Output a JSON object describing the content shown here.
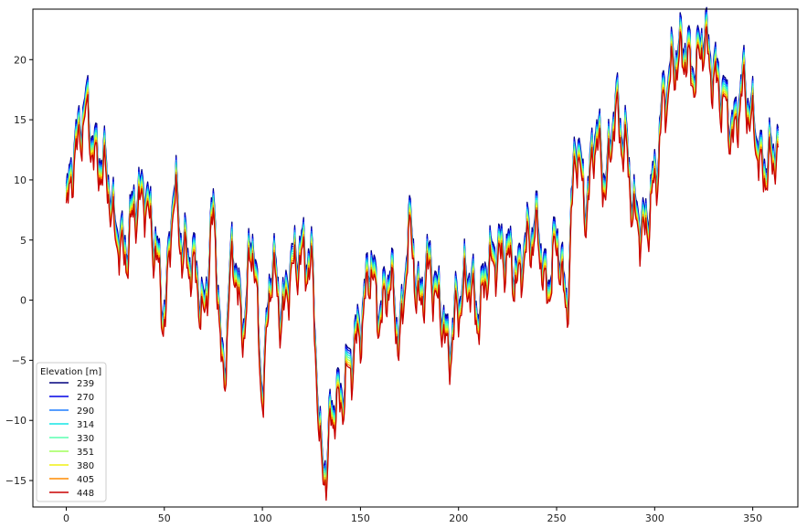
{
  "chart_data": {
    "type": "line",
    "title": "",
    "xlabel": "",
    "ylabel": "",
    "xlim": [
      -17,
      373
    ],
    "ylim": [
      -17.2,
      24.2
    ],
    "x_ticks": [
      0,
      50,
      100,
      150,
      200,
      250,
      300,
      350
    ],
    "y_ticks": [
      -15,
      -10,
      -5,
      0,
      5,
      10,
      15,
      20
    ],
    "grid": false,
    "legend": {
      "title": "Elevation [m]",
      "placement": "lower-left"
    },
    "x": [
      0,
      5,
      10,
      15,
      20,
      25,
      30,
      35,
      40,
      45,
      50,
      55,
      60,
      65,
      70,
      75,
      80,
      85,
      90,
      95,
      100,
      105,
      110,
      115,
      120,
      125,
      130,
      133,
      135,
      140,
      145,
      150,
      155,
      160,
      165,
      170,
      175,
      180,
      185,
      190,
      195,
      200,
      205,
      210,
      215,
      220,
      225,
      230,
      235,
      240,
      245,
      250,
      255,
      260,
      265,
      270,
      275,
      280,
      285,
      290,
      295,
      300,
      305,
      310,
      315,
      320,
      325,
      330,
      335,
      340,
      345,
      350,
      355,
      360,
      363
    ],
    "series": [
      {
        "name": "239",
        "color": "#00007f",
        "offset": 0.8
      },
      {
        "name": "270",
        "color": "#0000e6",
        "offset": 0.6
      },
      {
        "name": "290",
        "color": "#1e7dff",
        "offset": 0.4
      },
      {
        "name": "314",
        "color": "#14e6e6",
        "offset": 0.2
      },
      {
        "name": "330",
        "color": "#5affb0",
        "offset": 0.0
      },
      {
        "name": "351",
        "color": "#a0ff5a",
        "offset": -0.2
      },
      {
        "name": "380",
        "color": "#f0f014",
        "offset": -0.4
      },
      {
        "name": "405",
        "color": "#ff8c00",
        "offset": -0.6
      },
      {
        "name": "448",
        "color": "#c80000",
        "offset": -0.8
      }
    ],
    "base_values": [
      8,
      13,
      16,
      12,
      11,
      6,
      4,
      8,
      9,
      5,
      -1,
      9,
      4,
      3,
      -1,
      7,
      -6,
      4,
      -2,
      5,
      -7,
      3,
      -1,
      3,
      4,
      3,
      -13,
      -14,
      -9,
      -8,
      -5,
      -2,
      3,
      -1,
      2,
      -3,
      6,
      0,
      3,
      0,
      -4,
      0,
      2,
      -1,
      3,
      4,
      4,
      2,
      5,
      6,
      1,
      5,
      0,
      13,
      8,
      14,
      10,
      16,
      13,
      7,
      6,
      10,
      17,
      20,
      21,
      19,
      22,
      19,
      17,
      14,
      18,
      15,
      11,
      12,
      13.5
    ]
  }
}
